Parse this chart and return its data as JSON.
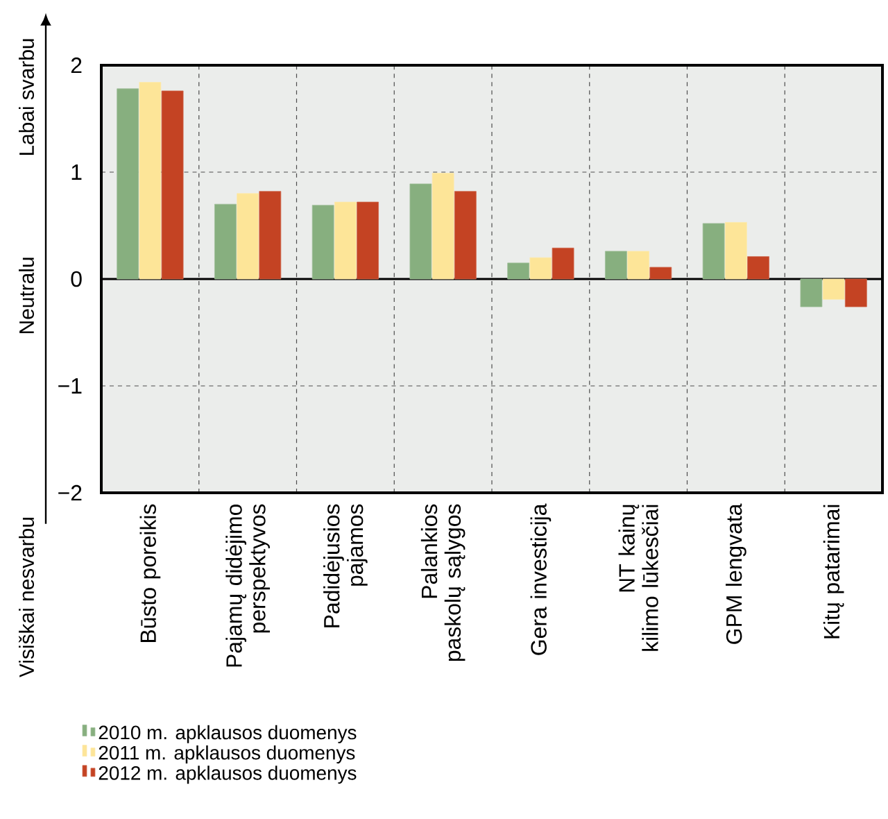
{
  "chart_data": {
    "type": "bar",
    "categories": [
      "Būsto poreikis",
      "Pajamų didėjimo perspektyvos",
      "Padidėjusios pajamos",
      "Palankios paskolų sąlygos",
      "Gera investicija",
      "NT kainų kilimo lūkesčiai",
      "GPM lengvata",
      "Kitų patarimai"
    ],
    "series": [
      {
        "name": "2010 m. apklausos duomenys",
        "color": "#87af7f",
        "values": [
          1.78,
          0.7,
          0.69,
          0.89,
          0.15,
          0.26,
          0.52,
          -0.26
        ]
      },
      {
        "name": "2011 m. apklausos duomenys",
        "color": "#fde598",
        "values": [
          1.84,
          0.8,
          0.72,
          0.99,
          0.2,
          0.26,
          0.53,
          -0.19
        ]
      },
      {
        "name": "2012 m. apklausos duomenys",
        "color": "#c44323",
        "values": [
          1.76,
          0.82,
          0.72,
          0.82,
          0.29,
          0.11,
          0.21,
          -0.26
        ]
      }
    ],
    "ylim": [
      -2,
      2
    ],
    "yticks": [
      {
        "value": -2,
        "label": "−2"
      },
      {
        "value": -1,
        "label": "−1"
      },
      0,
      1,
      2
    ],
    "annotations": [
      "Labai svarbu",
      "Neutralu",
      "Visiškai nesvarbu"
    ],
    "grid": true,
    "legend": "bottom left"
  }
}
